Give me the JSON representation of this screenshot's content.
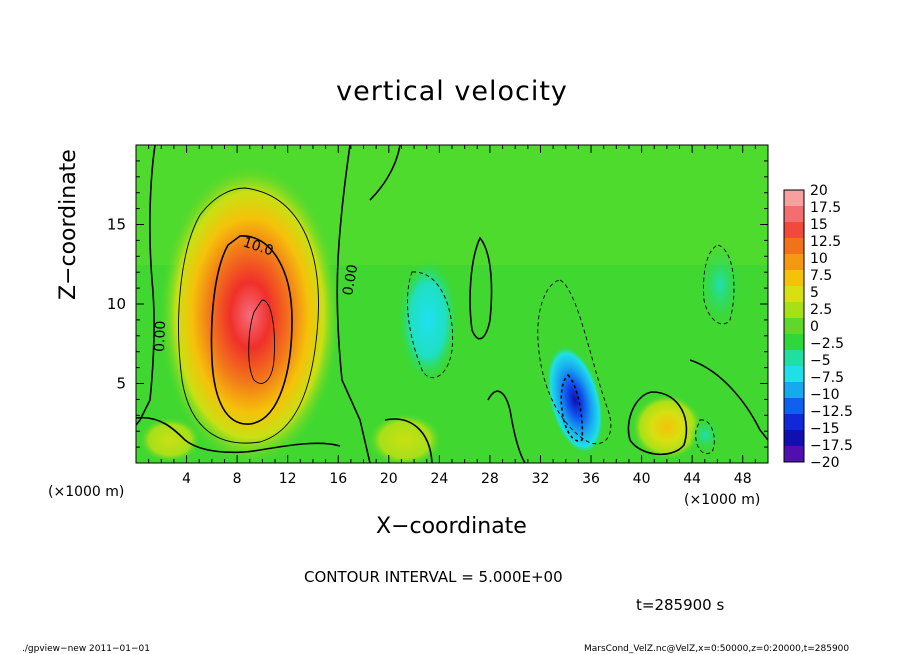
{
  "chart_data": {
    "type": "heatmap",
    "title": "vertical velocity",
    "xlabel": "X−coordinate",
    "ylabel": "Z−coordinate",
    "x_unit_label": "(×1000 m)",
    "z_unit_label": "(×1000 m)",
    "xlim": [
      0,
      50
    ],
    "ylim": [
      0,
      20
    ],
    "x_ticks": [
      4,
      8,
      12,
      16,
      20,
      24,
      28,
      32,
      36,
      40,
      44,
      48
    ],
    "y_ticks": [
      5,
      10,
      15
    ],
    "colorbar": {
      "labels": [
        "20",
        "17.5",
        "15",
        "12.5",
        "10",
        "7.5",
        "5",
        "2.5",
        "0",
        "−2.5",
        "−5",
        "−7.5",
        "−10",
        "−12.5",
        "−15",
        "−17.5",
        "−20"
      ],
      "colors": [
        "#f7a0a0",
        "#f36e6e",
        "#f24a3a",
        "#f2721c",
        "#f59a10",
        "#f5c20a",
        "#d8e010",
        "#a8e018",
        "#5fd82a",
        "#2fd83a",
        "#1fe0a0",
        "#1fe0e8",
        "#18a8f0",
        "#1060f0",
        "#1028d8",
        "#1010b0",
        "#5010b0"
      ]
    },
    "features": [
      {
        "type": "updraft",
        "x_center": 9.6,
        "z_center": 8.2,
        "peak": 15
      },
      {
        "type": "updraft",
        "x_center": 42,
        "z_center": 2.2,
        "peak": 7
      },
      {
        "type": "updraft",
        "x_center": 22,
        "z_center": 1.5,
        "peak": 4
      },
      {
        "type": "downdraft",
        "x_center": 34.4,
        "z_center": 3.5,
        "peak": -12
      },
      {
        "type": "downdraft",
        "x_center": 22.6,
        "z_center": 9,
        "peak": -6
      }
    ],
    "contour_labels": [
      "10.0",
      "0.00",
      "0.00"
    ],
    "contour_interval_text": "CONTOUR INTERVAL = 5.000E+00",
    "time_text": "t=285900  s"
  },
  "footer": {
    "left": "./gpview−new   2011−01−01",
    "right": "MarsCond_VelZ.nc@VelZ,x=0:50000,z=0:20000,t=285900"
  }
}
